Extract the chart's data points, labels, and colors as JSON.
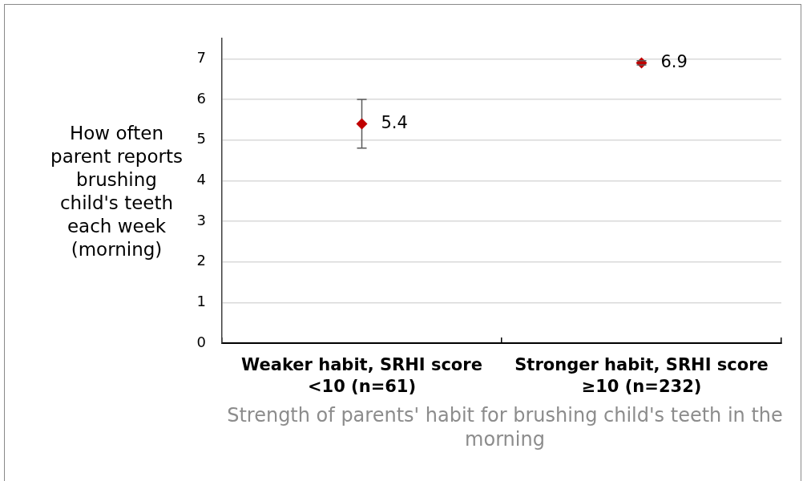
{
  "chart_data": {
    "type": "scatter",
    "categories": [
      "Weaker habit, SRHI score <10 (n=61)",
      "Stronger habit, SRHI score ≥10 (n=232)"
    ],
    "values": [
      5.4,
      6.9
    ],
    "errors": [
      0.6,
      0.05
    ],
    "color": "#c00000",
    "marker": "diamond",
    "data_labels": true,
    "xlabel": "Strength of parents' habit for brushing child's teeth in the morning",
    "ylabel": "How often parent reports brushing child's teeth each week (morning)",
    "ylim": [
      0,
      7.5
    ],
    "yticks": [
      0,
      1,
      2,
      3,
      4,
      5,
      6,
      7
    ],
    "grid": "y"
  }
}
